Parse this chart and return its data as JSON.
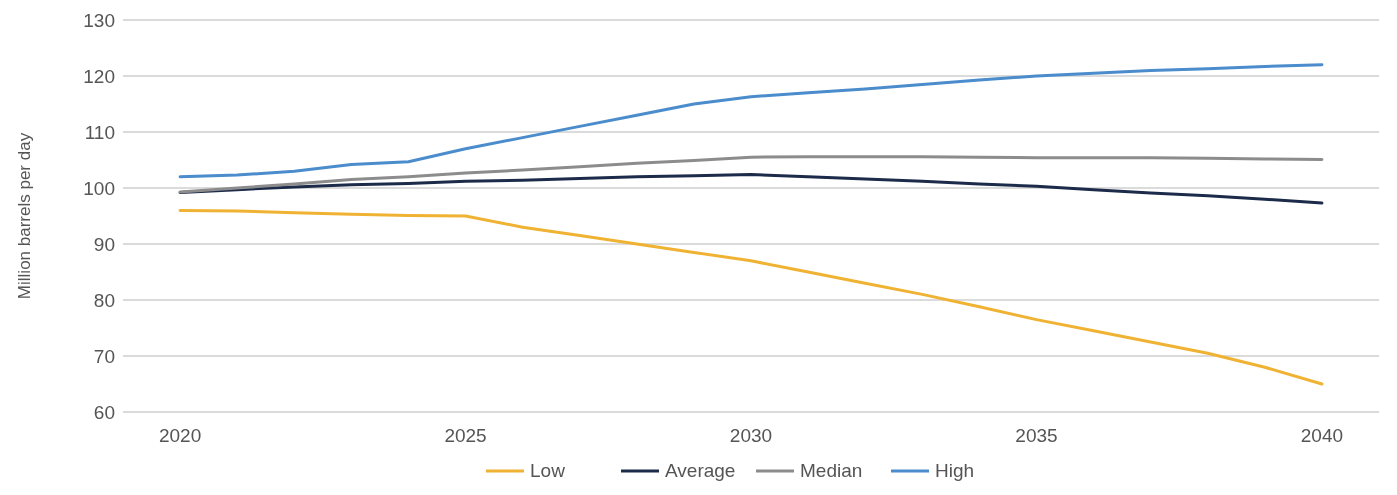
{
  "chart_data": {
    "type": "line",
    "ylabel": "Million barrels per day",
    "x": [
      2020,
      2021,
      2022,
      2023,
      2024,
      2025,
      2026,
      2027,
      2028,
      2029,
      2030,
      2031,
      2032,
      2033,
      2034,
      2035,
      2036,
      2037,
      2038,
      2039,
      2040
    ],
    "xlim": [
      2019,
      2041
    ],
    "xticks": [
      2020,
      2025,
      2030,
      2035,
      2040
    ],
    "ylim": [
      60,
      130
    ],
    "yticks": [
      60,
      70,
      80,
      90,
      100,
      110,
      120,
      130
    ],
    "grid": "y",
    "legend": "bottom",
    "marker": "none",
    "line_style": "solid",
    "series": [
      {
        "name": "Low",
        "color": "#f0b232",
        "values": [
          96,
          95.9,
          95.6,
          95.3,
          95.1,
          95,
          93,
          91.5,
          90,
          88.5,
          87,
          85,
          83,
          81,
          78.8,
          76.5,
          74.5,
          72.5,
          70.5,
          68,
          65
        ]
      },
      {
        "name": "Average",
        "color": "#1c2b4a",
        "values": [
          99.2,
          99.7,
          100.2,
          100.6,
          100.8,
          101.2,
          101.4,
          101.7,
          102,
          102.2,
          102.4,
          102,
          101.6,
          101.2,
          100.7,
          100.3,
          99.7,
          99.1,
          98.6,
          98,
          97.3
        ]
      },
      {
        "name": "Median",
        "color": "#8c8c8c",
        "values": [
          99.3,
          100,
          100.7,
          101.5,
          102,
          102.7,
          103.2,
          103.8,
          104.4,
          104.9,
          105.5,
          105.6,
          105.6,
          105.6,
          105.5,
          105.4,
          105.4,
          105.4,
          105.3,
          105.2,
          105.1
        ]
      },
      {
        "name": "High",
        "color": "#4a8ccc",
        "values": [
          102,
          102.3,
          103,
          104.2,
          104.7,
          107,
          109,
          111,
          113,
          115,
          116.3,
          117,
          117.7,
          118.5,
          119.3,
          120,
          120.5,
          121,
          121.3,
          121.7,
          122
        ]
      }
    ]
  }
}
